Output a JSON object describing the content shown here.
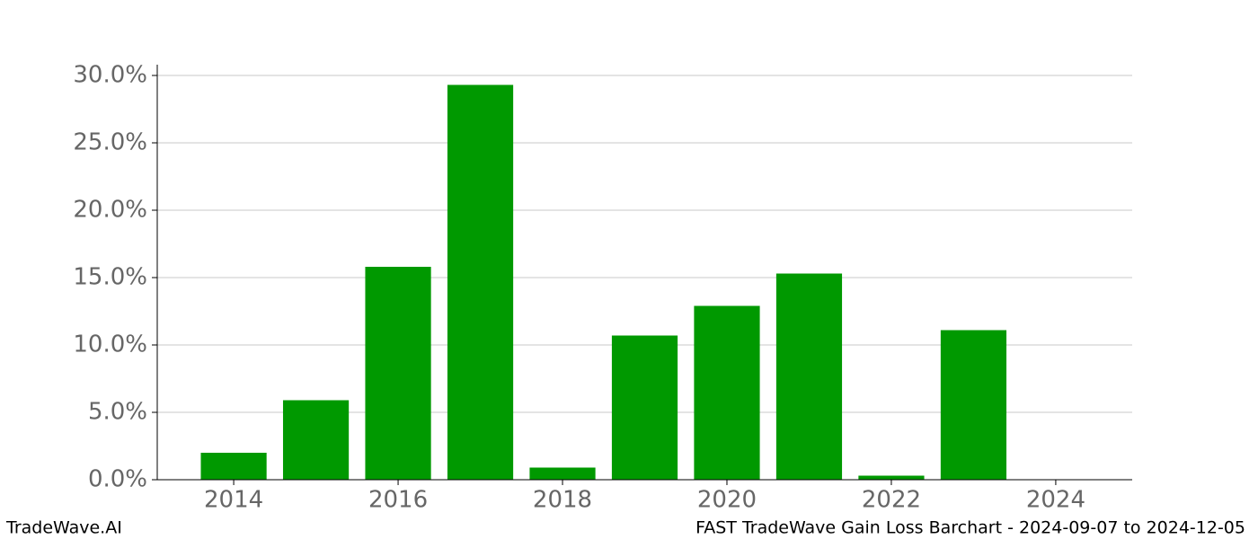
{
  "chart_data": {
    "type": "bar",
    "x": [
      2014,
      2015,
      2016,
      2017,
      2018,
      2019,
      2020,
      2021,
      2022,
      2023
    ],
    "values": [
      2.0,
      5.9,
      15.8,
      29.3,
      0.9,
      10.7,
      12.9,
      15.3,
      0.3,
      11.1
    ],
    "color": "#009900",
    "xlim": [
      2013.07,
      2024.93
    ],
    "xticks": [
      2014,
      2016,
      2018,
      2020,
      2022,
      2024
    ],
    "ylim": [
      0,
      30.8
    ],
    "yticks": [
      {
        "value": 0,
        "label": "0.0%"
      },
      {
        "value": 5,
        "label": "5.0%"
      },
      {
        "value": 10,
        "label": "10.0%"
      },
      {
        "value": 15,
        "label": "15.0%"
      },
      {
        "value": 20,
        "label": "20.0%"
      },
      {
        "value": 25,
        "label": "25.0%"
      },
      {
        "value": 30,
        "label": "30.0%"
      }
    ],
    "grid": true,
    "footer_left": "TradeWave.AI",
    "footer_right": "FAST TradeWave Gain Loss Barchart - 2024-09-07 to 2024-12-05"
  }
}
